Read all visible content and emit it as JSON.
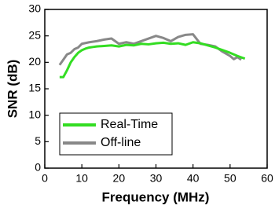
{
  "chart_data": {
    "type": "line",
    "x_label": "Frequency (MHz)",
    "y_label": "SNR (dB)",
    "xlim": [
      0,
      60
    ],
    "xticks": [
      0,
      10,
      20,
      30,
      40,
      50,
      60
    ],
    "ylim": [
      0,
      30
    ],
    "yticks": [
      0,
      5,
      10,
      15,
      20,
      25,
      30
    ],
    "legend": "lower left",
    "series": [
      {
        "name": "Real-Time",
        "color": "#33dd22",
        "x": [
          4,
          5,
          6,
          7,
          8,
          9,
          10,
          11,
          12,
          13,
          14,
          16,
          18,
          20,
          22,
          24,
          26,
          28,
          30,
          32,
          34,
          36,
          38,
          40,
          42,
          44,
          46,
          48,
          50,
          52,
          54
        ],
        "values": [
          17.2,
          17.2,
          18.5,
          20,
          21,
          21.8,
          22.3,
          22.6,
          22.8,
          22.9,
          23,
          23.1,
          23.2,
          23,
          23.3,
          23.2,
          23.5,
          23.4,
          23.6,
          23.7,
          23.5,
          23.6,
          23.3,
          23.8,
          23.6,
          23.2,
          22.8,
          22.3,
          21.8,
          21.2,
          20.7
        ]
      },
      {
        "name": "Off-line",
        "color": "#888888",
        "x": [
          4,
          5,
          6,
          7,
          8,
          9,
          10,
          12,
          14,
          16,
          18,
          20,
          22,
          24,
          26,
          28,
          30,
          32,
          34,
          36,
          38,
          40,
          42,
          44,
          46,
          48,
          50,
          51,
          52,
          53
        ],
        "values": [
          19.5,
          20.5,
          21.5,
          21.8,
          22.5,
          22.8,
          23.5,
          23.8,
          24,
          24.3,
          24.5,
          23.5,
          23.8,
          23.5,
          24,
          24.5,
          25,
          24.6,
          24,
          24.8,
          25.2,
          25.3,
          23.5,
          23.3,
          23,
          22,
          21.2,
          20.6,
          21,
          20.5
        ]
      }
    ]
  }
}
